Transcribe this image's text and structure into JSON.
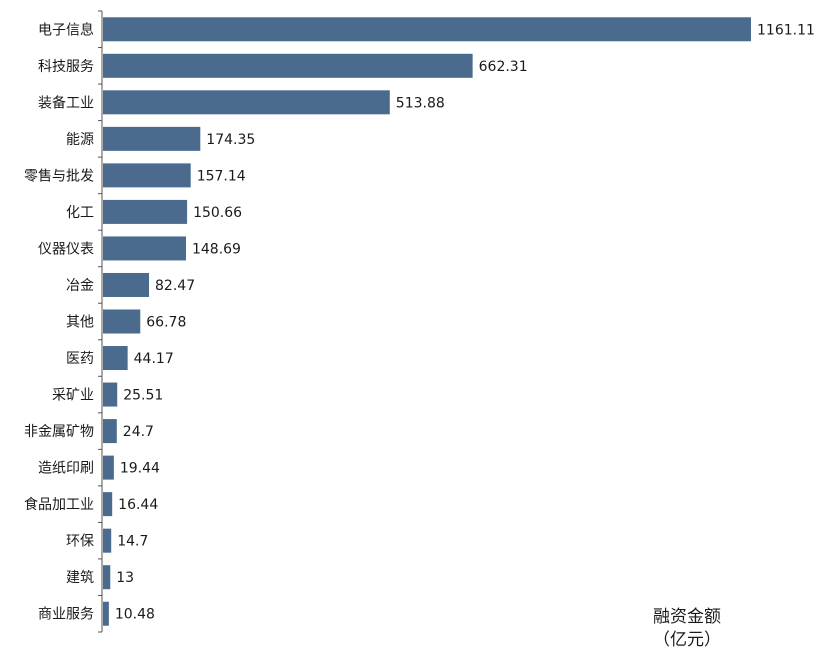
{
  "chart_data": {
    "type": "bar",
    "orientation": "horizontal",
    "categories": [
      "电子信息",
      "科技服务",
      "装备工业",
      "能源",
      "零售与批发",
      "化工",
      "仪器仪表",
      "冶金",
      "其他",
      "医药",
      "采矿业",
      "非金属矿物",
      "造纸印刷",
      "食品加工业",
      "环保",
      "建筑",
      "商业服务"
    ],
    "values": [
      1161.11,
      662.31,
      513.88,
      174.35,
      157.14,
      150.66,
      148.69,
      82.47,
      66.78,
      44.17,
      25.51,
      24.7,
      19.44,
      16.44,
      14.7,
      13,
      10.48
    ],
    "value_labels": [
      "1161.11",
      "662.31",
      "513.88",
      "174.35",
      "157.14",
      "150.66",
      "148.69",
      "82.47",
      "66.78",
      "44.17",
      "25.51",
      "24.7",
      "19.44",
      "16.44",
      "14.7",
      "13",
      "10.48"
    ],
    "unit_label_line1": "融资金额",
    "unit_label_line2": "（亿元）",
    "xlim": [
      0,
      1161.11
    ],
    "grid": false,
    "bar_color": "#4a6a8e",
    "axis_color": "#555555"
  }
}
